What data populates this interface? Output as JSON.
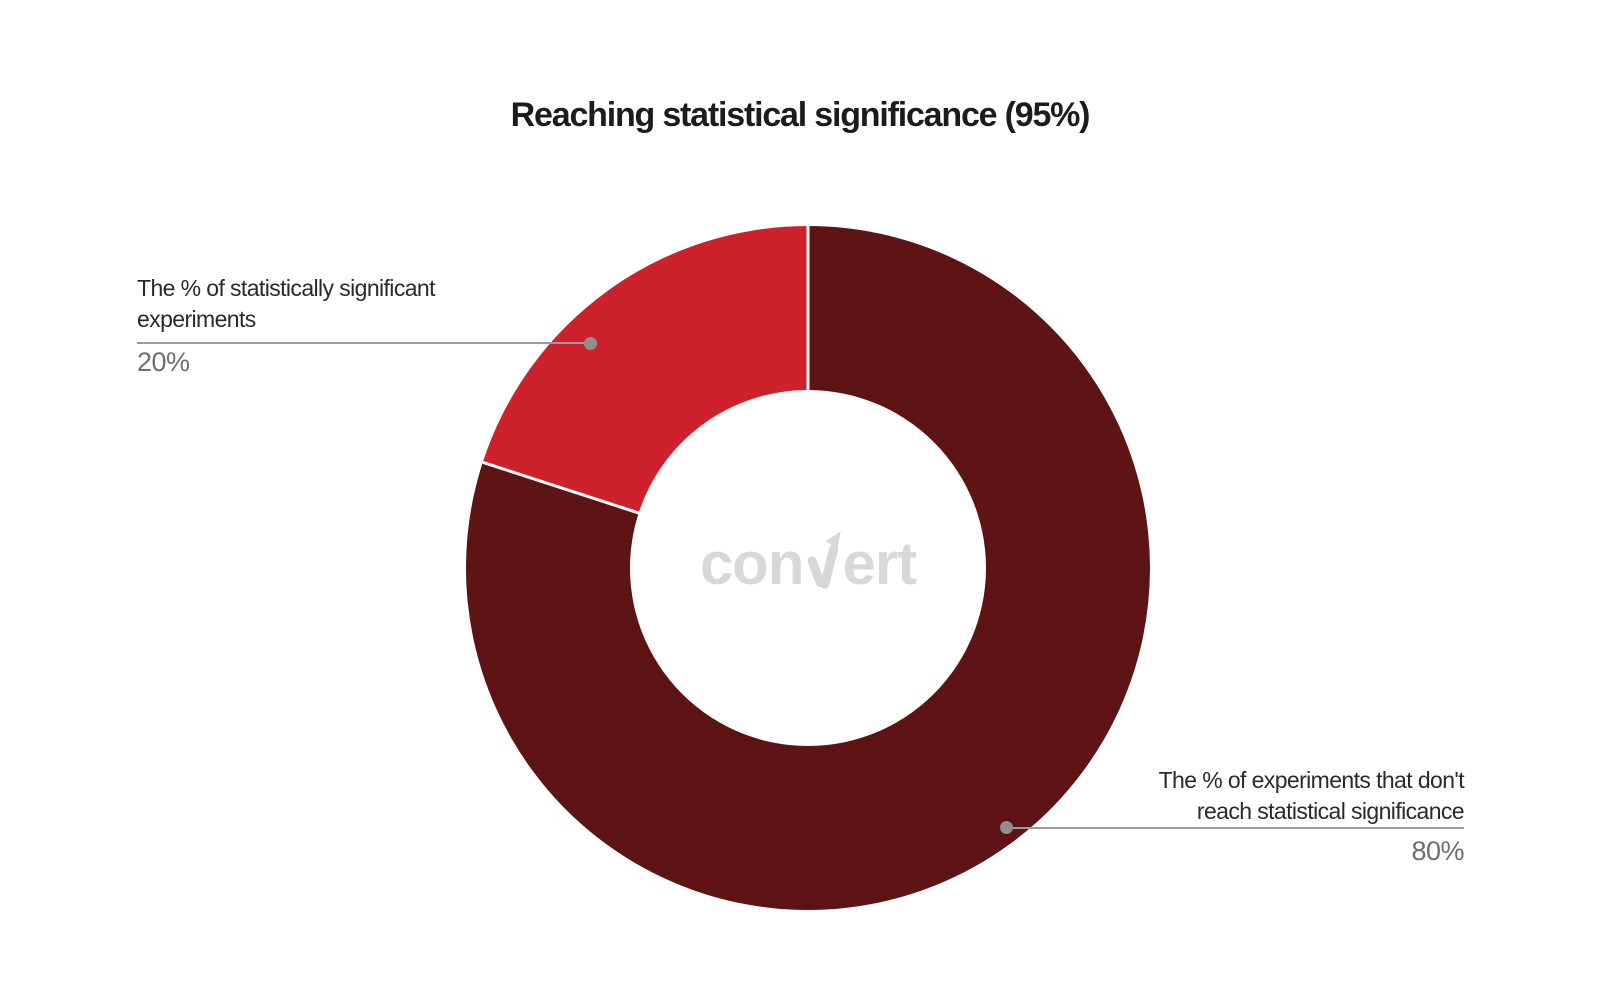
{
  "title": "Reaching statistical significance (95%)",
  "watermark": {
    "left": "con",
    "right": "ert"
  },
  "colors": {
    "background": "#ffffff",
    "title_text": "#1c1c1c",
    "label_text": "#2a2a2a",
    "percent_text": "#6e6e6e",
    "leader_line": "#9b9b9b",
    "leader_dot": "#8f8f8f",
    "watermark": "#d8d8db",
    "slice_significant": "#cd222b",
    "slice_not_significant": "#5e1414",
    "separator": "#ffffff"
  },
  "annotations": {
    "left": {
      "lines": [
        "The % of statistically significant",
        "experiments"
      ],
      "value": "20%"
    },
    "right": {
      "lines": [
        "The % of experiments that don't",
        "reach statistical significance"
      ],
      "value": "80%"
    }
  },
  "chart_data": {
    "type": "pie",
    "subtype": "donut",
    "title": "Reaching statistical significance (95%)",
    "slices": [
      {
        "label": "The % of statistically significant experiments",
        "value": 20,
        "display_value": "20%",
        "color": "#cd222b"
      },
      {
        "label": "The % of experiments that don't reach statistical significance",
        "value": 80,
        "display_value": "80%",
        "color": "#5e1414"
      }
    ],
    "total": 100,
    "start_angle": "top",
    "listed_order_direction": "counterclockwise",
    "inner_radius_ratio": 0.52,
    "separator_color": "#ffffff",
    "legend": "none",
    "annotation_style": "leader-line-with-dot"
  }
}
